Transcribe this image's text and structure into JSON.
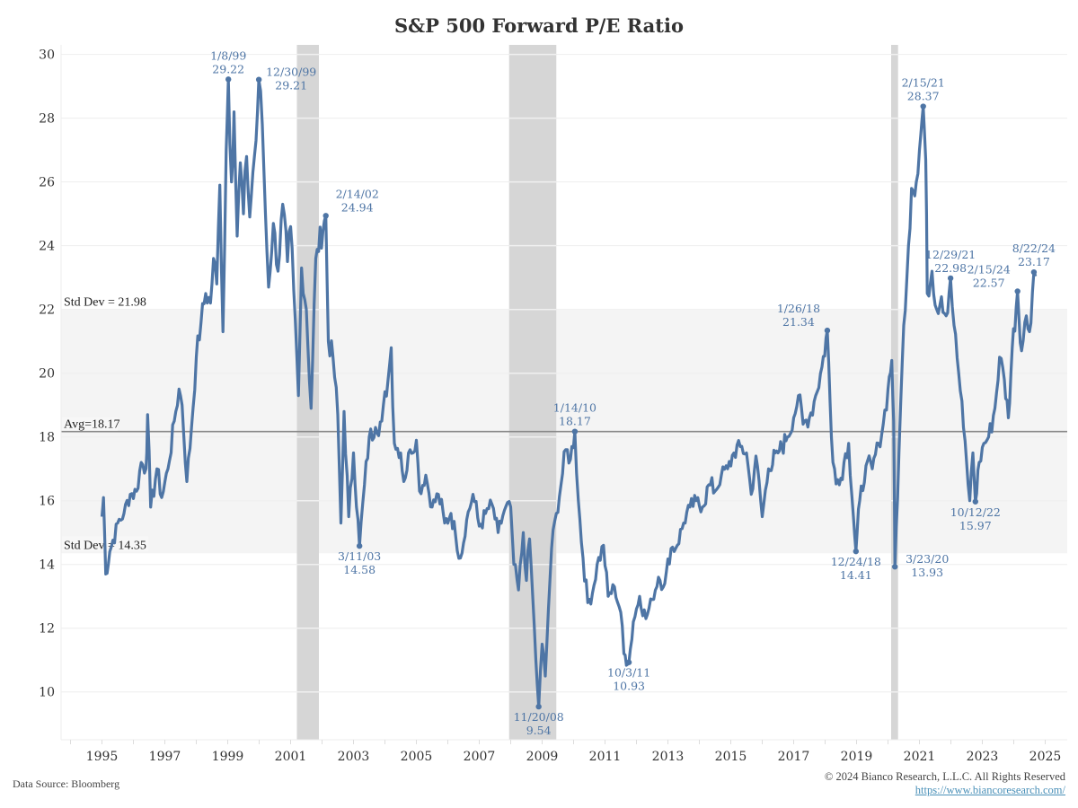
{
  "chart_data": {
    "type": "line",
    "title": "S&P 500 Forward P/E Ratio",
    "xlabel": "",
    "ylabel": "",
    "xlim": [
      1993.7,
      2025.7
    ],
    "ylim": [
      8.5,
      30.3
    ],
    "grid": true,
    "legend": "none",
    "x_ticks": [
      1995,
      1997,
      1999,
      2001,
      2003,
      2005,
      2007,
      2009,
      2011,
      2013,
      2015,
      2017,
      2019,
      2021,
      2023,
      2025
    ],
    "x_tick_labels": [
      "1995",
      "1997",
      "1999",
      "2001",
      "2003",
      "2005",
      "2007",
      "2009",
      "2011",
      "2013",
      "2015",
      "2017",
      "2019",
      "2021",
      "2023",
      "2025"
    ],
    "y_ticks": [
      10,
      12,
      14,
      16,
      18,
      20,
      22,
      24,
      26,
      28,
      30
    ],
    "y_tick_labels": [
      "10",
      "12",
      "14",
      "16",
      "18",
      "20",
      "22",
      "24",
      "26",
      "28",
      "30"
    ],
    "series": [
      {
        "name": "S&P 500 Forward P/E",
        "color": "#4e75a5",
        "points": [
          [
            1995.0,
            15.5
          ],
          [
            1995.05,
            16.1
          ],
          [
            1995.12,
            13.7
          ],
          [
            1995.25,
            14.4
          ],
          [
            1995.5,
            15.3
          ],
          [
            1995.7,
            15.6
          ],
          [
            1995.9,
            16.2
          ],
          [
            1996.1,
            16.3
          ],
          [
            1996.25,
            17.2
          ],
          [
            1996.4,
            17.0
          ],
          [
            1996.45,
            18.7
          ],
          [
            1996.55,
            15.8
          ],
          [
            1996.75,
            17.0
          ],
          [
            1996.9,
            16.1
          ],
          [
            1997.1,
            17.0
          ],
          [
            1997.3,
            18.5
          ],
          [
            1997.45,
            19.5
          ],
          [
            1997.55,
            19.0
          ],
          [
            1997.7,
            16.6
          ],
          [
            1997.85,
            18.3
          ],
          [
            1998.0,
            20.5
          ],
          [
            1998.15,
            21.6
          ],
          [
            1998.3,
            22.5
          ],
          [
            1998.45,
            22.2
          ],
          [
            1998.55,
            23.6
          ],
          [
            1998.65,
            22.8
          ],
          [
            1998.75,
            25.9
          ],
          [
            1998.85,
            21.3
          ],
          [
            1998.95,
            27.0
          ],
          [
            1999.02,
            29.22
          ],
          [
            1999.12,
            26.0
          ],
          [
            1999.2,
            28.2
          ],
          [
            1999.3,
            24.3
          ],
          [
            1999.4,
            26.6
          ],
          [
            1999.5,
            25.0
          ],
          [
            1999.6,
            26.8
          ],
          [
            1999.7,
            24.9
          ],
          [
            1999.8,
            26.3
          ],
          [
            1999.9,
            27.3
          ],
          [
            1999.99,
            29.21
          ],
          [
            2000.1,
            27.8
          ],
          [
            2000.2,
            25.0
          ],
          [
            2000.3,
            22.7
          ],
          [
            2000.45,
            24.7
          ],
          [
            2000.6,
            23.2
          ],
          [
            2000.75,
            25.3
          ],
          [
            2000.9,
            23.5
          ],
          [
            2001.0,
            24.6
          ],
          [
            2001.1,
            22.6
          ],
          [
            2001.25,
            19.3
          ],
          [
            2001.35,
            23.3
          ],
          [
            2001.5,
            22.0
          ],
          [
            2001.65,
            18.9
          ],
          [
            2001.8,
            23.6
          ],
          [
            2002.12,
            24.94
          ],
          [
            2002.2,
            21.0
          ],
          [
            2002.35,
            20.5
          ],
          [
            2002.5,
            18.7
          ],
          [
            2002.6,
            15.3
          ],
          [
            2002.7,
            18.8
          ],
          [
            2002.85,
            15.5
          ],
          [
            2003.0,
            17.5
          ],
          [
            2003.19,
            14.58
          ],
          [
            2003.35,
            16.5
          ],
          [
            2003.5,
            18.0
          ],
          [
            2003.7,
            18.3
          ],
          [
            2003.9,
            18.5
          ],
          [
            2004.1,
            19.8
          ],
          [
            2004.2,
            20.8
          ],
          [
            2004.3,
            17.8
          ],
          [
            2004.5,
            17.5
          ],
          [
            2004.6,
            16.6
          ],
          [
            2004.8,
            17.6
          ],
          [
            2005.0,
            17.9
          ],
          [
            2005.1,
            16.3
          ],
          [
            2005.3,
            16.8
          ],
          [
            2005.5,
            15.8
          ],
          [
            2005.7,
            16.2
          ],
          [
            2005.9,
            15.3
          ],
          [
            2006.1,
            15.6
          ],
          [
            2006.25,
            14.9
          ],
          [
            2006.4,
            14.2
          ],
          [
            2006.6,
            15.4
          ],
          [
            2006.8,
            16.2
          ],
          [
            2007.0,
            15.2
          ],
          [
            2007.2,
            15.6
          ],
          [
            2007.4,
            15.9
          ],
          [
            2007.6,
            15.0
          ],
          [
            2007.8,
            15.7
          ],
          [
            2008.0,
            15.8
          ],
          [
            2008.1,
            14.0
          ],
          [
            2008.25,
            13.2
          ],
          [
            2008.4,
            15.0
          ],
          [
            2008.5,
            13.5
          ],
          [
            2008.6,
            14.8
          ],
          [
            2008.7,
            13.0
          ],
          [
            2008.8,
            11.0
          ],
          [
            2008.89,
            9.54
          ],
          [
            2009.0,
            11.5
          ],
          [
            2009.1,
            10.5
          ],
          [
            2009.2,
            12.6
          ],
          [
            2009.3,
            14.5
          ],
          [
            2009.45,
            15.6
          ],
          [
            2009.6,
            16.5
          ],
          [
            2009.75,
            17.6
          ],
          [
            2009.9,
            17.3
          ],
          [
            2010.04,
            18.17
          ],
          [
            2010.15,
            16.0
          ],
          [
            2010.3,
            14.2
          ],
          [
            2010.45,
            12.8
          ],
          [
            2010.6,
            13.1
          ],
          [
            2010.75,
            14.0
          ],
          [
            2010.95,
            14.6
          ],
          [
            2011.1,
            13.0
          ],
          [
            2011.3,
            13.3
          ],
          [
            2011.5,
            12.5
          ],
          [
            2011.6,
            11.2
          ],
          [
            2011.76,
            10.93
          ],
          [
            2011.9,
            12.2
          ],
          [
            2012.1,
            13.0
          ],
          [
            2012.3,
            12.3
          ],
          [
            2012.5,
            12.9
          ],
          [
            2012.7,
            13.6
          ],
          [
            2012.9,
            13.4
          ],
          [
            2013.1,
            14.5
          ],
          [
            2013.3,
            14.6
          ],
          [
            2013.5,
            15.3
          ],
          [
            2013.7,
            15.8
          ],
          [
            2013.9,
            16.0
          ],
          [
            2014.1,
            15.8
          ],
          [
            2014.3,
            16.5
          ],
          [
            2014.5,
            16.3
          ],
          [
            2014.7,
            16.8
          ],
          [
            2014.9,
            17.0
          ],
          [
            2015.1,
            17.5
          ],
          [
            2015.3,
            17.7
          ],
          [
            2015.5,
            17.5
          ],
          [
            2015.65,
            16.2
          ],
          [
            2015.8,
            17.4
          ],
          [
            2016.0,
            15.5
          ],
          [
            2016.2,
            17.0
          ],
          [
            2016.5,
            17.5
          ],
          [
            2016.8,
            18.0
          ],
          [
            2017.0,
            18.6
          ],
          [
            2017.15,
            19.3
          ],
          [
            2017.3,
            18.4
          ],
          [
            2017.5,
            18.6
          ],
          [
            2017.7,
            19.3
          ],
          [
            2017.9,
            20.2
          ],
          [
            2018.07,
            21.34
          ],
          [
            2018.2,
            18.0
          ],
          [
            2018.3,
            17.0
          ],
          [
            2018.45,
            16.5
          ],
          [
            2018.6,
            17.2
          ],
          [
            2018.75,
            17.8
          ],
          [
            2018.9,
            15.5
          ],
          [
            2018.98,
            14.41
          ],
          [
            2019.1,
            16.0
          ],
          [
            2019.3,
            17.1
          ],
          [
            2019.5,
            17.0
          ],
          [
            2019.7,
            17.8
          ],
          [
            2019.85,
            18.4
          ],
          [
            2020.0,
            19.5
          ],
          [
            2020.12,
            20.4
          ],
          [
            2020.18,
            18.5
          ],
          [
            2020.22,
            13.93
          ],
          [
            2020.35,
            17.5
          ],
          [
            2020.5,
            21.5
          ],
          [
            2020.65,
            24.0
          ],
          [
            2020.75,
            25.8
          ],
          [
            2020.9,
            26.0
          ],
          [
            2021.0,
            27.0
          ],
          [
            2021.12,
            28.37
          ],
          [
            2021.2,
            26.7
          ],
          [
            2021.25,
            22.5
          ],
          [
            2021.4,
            23.2
          ],
          [
            2021.55,
            22.0
          ],
          [
            2021.7,
            22.4
          ],
          [
            2021.85,
            21.8
          ],
          [
            2021.99,
            22.98
          ],
          [
            2022.1,
            21.5
          ],
          [
            2022.25,
            20.0
          ],
          [
            2022.4,
            18.3
          ],
          [
            2022.5,
            17.2
          ],
          [
            2022.6,
            16.0
          ],
          [
            2022.7,
            17.5
          ],
          [
            2022.78,
            15.97
          ],
          [
            2022.9,
            17.2
          ],
          [
            2023.05,
            17.8
          ],
          [
            2023.2,
            18.0
          ],
          [
            2023.4,
            18.9
          ],
          [
            2023.55,
            20.5
          ],
          [
            2023.7,
            19.8
          ],
          [
            2023.83,
            18.6
          ],
          [
            2023.95,
            20.8
          ],
          [
            2024.12,
            22.57
          ],
          [
            2024.25,
            20.7
          ],
          [
            2024.4,
            21.8
          ],
          [
            2024.5,
            21.3
          ],
          [
            2024.64,
            23.17
          ],
          [
            2024.72,
            23.1
          ]
        ]
      }
    ],
    "reference_lines": [
      {
        "label": "Avg=18.17",
        "value": 18.17,
        "color": "#888888"
      }
    ],
    "reference_band": {
      "lower_label": "Std Dev = 14.35",
      "lower": 14.35,
      "upper_label": "Std Dev = 21.98",
      "upper": 21.98,
      "color": "#f4f4f4"
    },
    "recession_shading": [
      {
        "start": 2001.2,
        "end": 2001.9
      },
      {
        "start": 2007.95,
        "end": 2009.45
      },
      {
        "start": 2020.1,
        "end": 2020.32
      }
    ],
    "annotations": [
      {
        "date": "1/8/99",
        "value": "29.22",
        "x": 1999.02,
        "y": 29.22,
        "pos": "above"
      },
      {
        "date": "12/30/99",
        "value": "29.21",
        "x": 1999.99,
        "y": 29.21,
        "pos": "right"
      },
      {
        "date": "2/14/02",
        "value": "24.94",
        "x": 2002.12,
        "y": 24.94,
        "pos": "above-right"
      },
      {
        "date": "3/11/03",
        "value": "14.58",
        "x": 2003.19,
        "y": 14.58,
        "pos": "below"
      },
      {
        "date": "11/20/08",
        "value": "9.54",
        "x": 2008.89,
        "y": 9.54,
        "pos": "below"
      },
      {
        "date": "1/14/10",
        "value": "18.17",
        "x": 2010.04,
        "y": 18.17,
        "pos": "above"
      },
      {
        "date": "10/3/11",
        "value": "10.93",
        "x": 2011.76,
        "y": 10.93,
        "pos": "below"
      },
      {
        "date": "1/26/18",
        "value": "21.34",
        "x": 2018.07,
        "y": 21.34,
        "pos": "above-left"
      },
      {
        "date": "12/24/18",
        "value": "14.41",
        "x": 2018.98,
        "y": 14.41,
        "pos": "below"
      },
      {
        "date": "3/23/20",
        "value": "13.93",
        "x": 2020.22,
        "y": 13.93,
        "pos": "right"
      },
      {
        "date": "2/15/21",
        "value": "28.37",
        "x": 2021.12,
        "y": 28.37,
        "pos": "above"
      },
      {
        "date": "12/29/21",
        "value": "22.98",
        "x": 2021.99,
        "y": 22.98,
        "pos": "above"
      },
      {
        "date": "10/12/22",
        "value": "15.97",
        "x": 2022.78,
        "y": 15.97,
        "pos": "below"
      },
      {
        "date": "2/15/24",
        "value": "22.57",
        "x": 2024.12,
        "y": 22.57,
        "pos": "above-left"
      },
      {
        "date": "8/22/24",
        "value": "23.17",
        "x": 2024.64,
        "y": 23.17,
        "pos": "above"
      }
    ]
  },
  "footer": {
    "source": "Data Source: Bloomberg",
    "copyright": "© 2024 Bianco Research, L.L.C. All Rights Reserved",
    "link": "https://www.biancoresearch.com/"
  }
}
